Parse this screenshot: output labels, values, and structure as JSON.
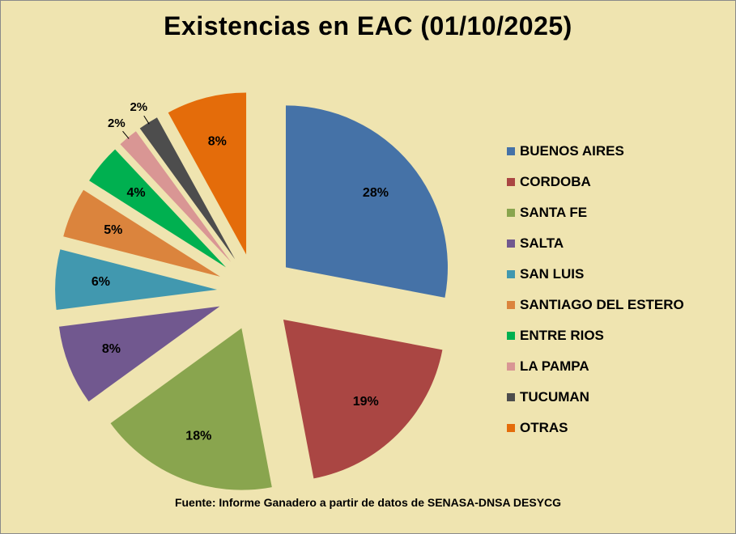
{
  "chart_data": {
    "type": "pie",
    "title": "Existencias en EAC (01/10/2025)",
    "legend_position": "right",
    "categories": [
      "BUENOS AIRES",
      "CORDOBA",
      "SANTA FE",
      "SALTA",
      "SAN LUIS",
      "SANTIAGO DEL ESTERO",
      "ENTRE RIOS",
      "LA PAMPA",
      "TUCUMAN",
      "OTRAS"
    ],
    "values": [
      28,
      19,
      18,
      8,
      6,
      5,
      4,
      2,
      2,
      8
    ],
    "labels": [
      "28%",
      "19%",
      "18%",
      "8%",
      "6%",
      "5%",
      "4%",
      "2%",
      "2%",
      "8%"
    ],
    "colors": [
      "#4572a7",
      "#aa4643",
      "#89a54e",
      "#71588f",
      "#4198af",
      "#db843d",
      "#00b050",
      "#d99694",
      "#4d4d4d",
      "#e46c0a"
    ],
    "exploded": true
  },
  "source_note": "Fuente: Informe Ganadero a partir de datos de SENASA-DNSA DESYCG",
  "background_color": "#efe4b0"
}
